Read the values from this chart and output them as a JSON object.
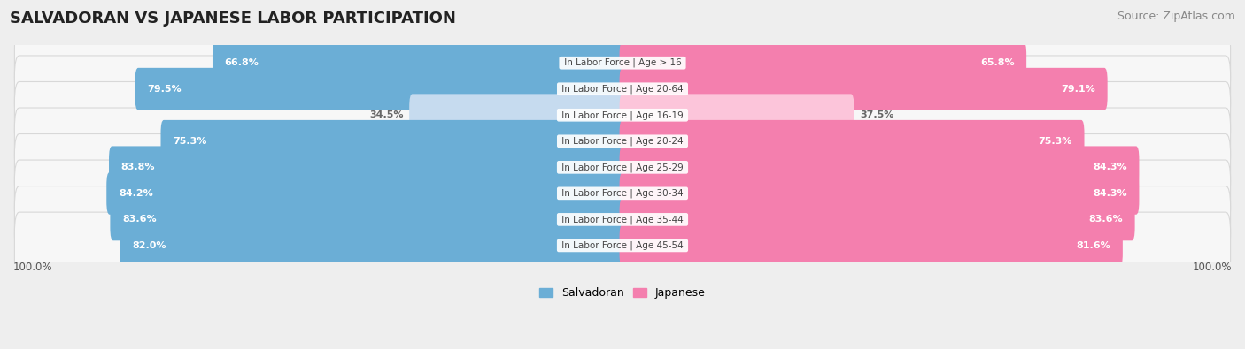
{
  "title": "SALVADORAN VS JAPANESE LABOR PARTICIPATION",
  "source": "Source: ZipAtlas.com",
  "categories": [
    "In Labor Force | Age > 16",
    "In Labor Force | Age 20-64",
    "In Labor Force | Age 16-19",
    "In Labor Force | Age 20-24",
    "In Labor Force | Age 25-29",
    "In Labor Force | Age 30-34",
    "In Labor Force | Age 35-44",
    "In Labor Force | Age 45-54"
  ],
  "salvadoran": [
    66.8,
    79.5,
    34.5,
    75.3,
    83.8,
    84.2,
    83.6,
    82.0
  ],
  "japanese": [
    65.8,
    79.1,
    37.5,
    75.3,
    84.3,
    84.3,
    83.6,
    81.6
  ],
  "salvadoran_color": "#6baed6",
  "japanese_color": "#f47fae",
  "salvadoran_light": "#c6dbef",
  "japanese_light": "#fcc5da",
  "bg_color": "#eeeeee",
  "row_bg": "#f7f7f7",
  "row_border": "#d8d8d8",
  "label_color": "#444444",
  "value_color_dark": "white",
  "value_color_light": "#666666",
  "bar_max": 100.0,
  "legend_salvadoran": "Salvadoran",
  "legend_japanese": "Japanese",
  "title_fontsize": 13,
  "source_fontsize": 9,
  "cat_fontsize": 7.5,
  "val_fontsize": 8.0
}
